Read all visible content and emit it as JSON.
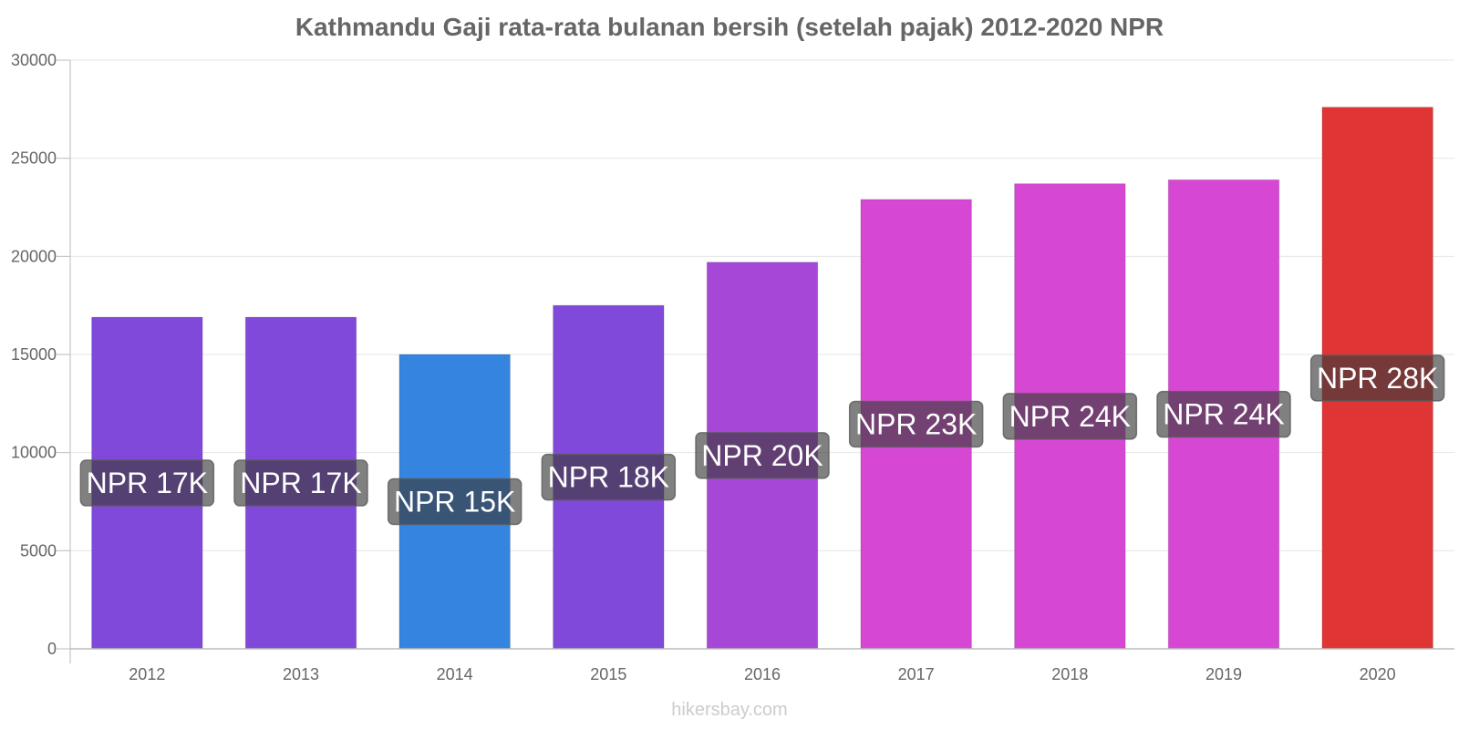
{
  "chart_data": {
    "type": "bar",
    "title": "Kathmandu Gaji rata-rata bulanan bersih (setelah pajak) 2012-2020 NPR",
    "categories": [
      "2012",
      "2013",
      "2014",
      "2015",
      "2016",
      "2017",
      "2018",
      "2019",
      "2020"
    ],
    "values": [
      16900,
      16900,
      15000,
      17500,
      19700,
      22900,
      23700,
      23900,
      27600
    ],
    "data_labels": [
      "NPR 17K",
      "NPR 17K",
      "NPR 15K",
      "NPR 18K",
      "NPR 20K",
      "NPR 23K",
      "NPR 24K",
      "NPR 24K",
      "NPR 28K"
    ],
    "bar_colors": [
      "#8149d9",
      "#8149d9",
      "#3584e0",
      "#8149d9",
      "#a647d8",
      "#d648d4",
      "#d648d4",
      "#d648d4",
      "#e03535"
    ],
    "ylim": [
      0,
      30000
    ],
    "yticks": [
      0,
      5000,
      10000,
      15000,
      20000,
      25000,
      30000
    ],
    "xlabel": "",
    "ylabel": "",
    "grid": true,
    "legend": "none"
  },
  "watermark": "hikersbay.com"
}
